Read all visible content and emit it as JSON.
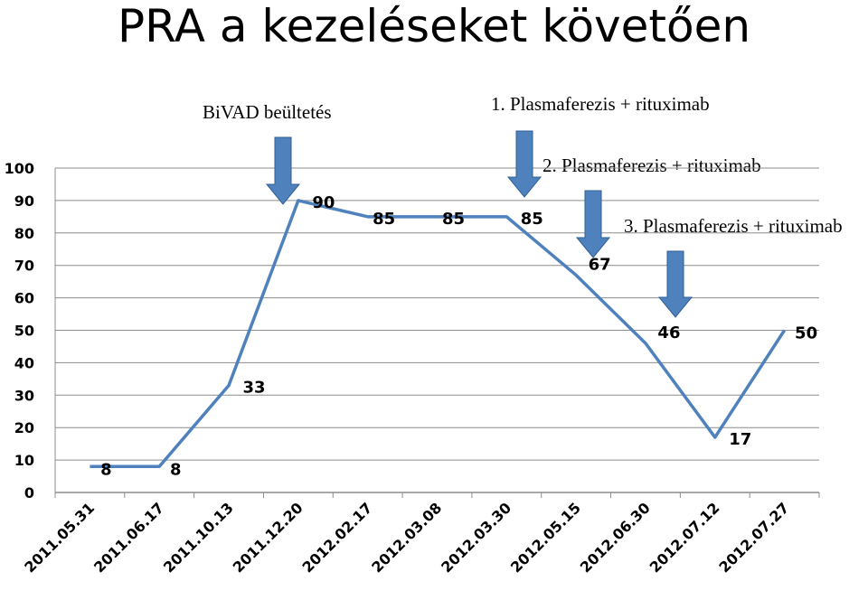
{
  "page": {
    "title": "PRA a kezeléseket követően"
  },
  "annotations": [
    {
      "text": "BiVAD beültetés"
    },
    {
      "text": "1. Plasmaferezis + rituximab"
    },
    {
      "text": "2. Plasmaferezis + rituximab"
    },
    {
      "text": "3. Plasmaferezis + rituximab"
    }
  ],
  "colors": {
    "line": "#4F81BD",
    "arrow": "#4F81BD",
    "gridline": "#8C8C8C"
  },
  "chart_data": {
    "type": "line",
    "title": "",
    "xlabel": "",
    "ylabel": "",
    "categories": [
      "2011.05.31",
      "2011.06.17",
      "2011.10.13",
      "2011.12.20",
      "2012.02.17",
      "2012.03.08",
      "2012.03.30",
      "2012.05.15",
      "2012.06.30",
      "2012.07.12",
      "2012.07.27"
    ],
    "series": [
      {
        "values": [
          8,
          8,
          33,
          90,
          85,
          85,
          85,
          67,
          46,
          17,
          50
        ]
      }
    ],
    "data_labels": [
      "8",
      "8",
      "33",
      "90",
      "85",
      "85",
      "85",
      "67",
      "46",
      "17",
      "50"
    ],
    "yticks": [
      "0",
      "10",
      "20",
      "30",
      "40",
      "50",
      "60",
      "70",
      "80",
      "90",
      "100"
    ],
    "ylim": [
      0,
      100
    ],
    "grid": true,
    "legend": "none"
  }
}
